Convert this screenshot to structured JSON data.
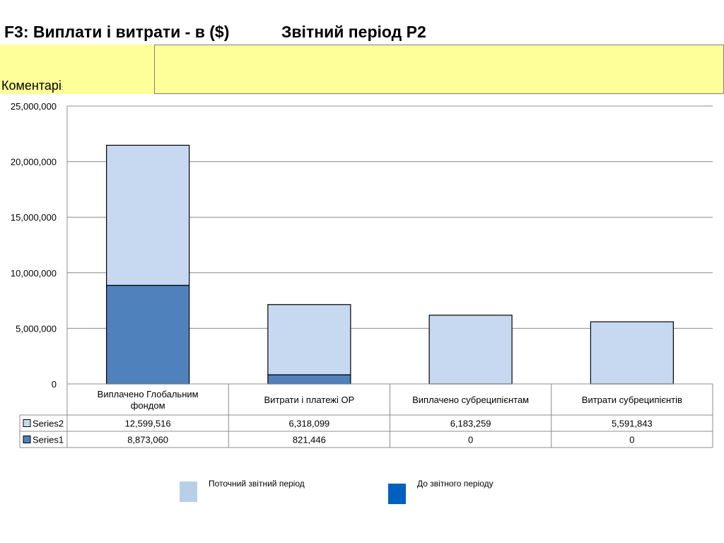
{
  "header": {
    "title_left": "F3: Виплати і витрати - в ($)",
    "title_right": "Звітний період P2"
  },
  "comment": {
    "label": "Коментарі",
    "colon": ":",
    "text": ""
  },
  "chart_data": {
    "type": "bar",
    "stacked": true,
    "categories": [
      "Виплачено Глобальним фондом",
      "Витрати і платежі ОР",
      "Виплачено субреципієнтам",
      "Витрати субреципієнтів"
    ],
    "series": [
      {
        "name": "Series2",
        "values": [
          12599516,
          6318099,
          6183259,
          5591843
        ],
        "color": "#c6d9f1"
      },
      {
        "name": "Series1",
        "values": [
          8873060,
          821446,
          0,
          0
        ],
        "color": "#4f81bd"
      }
    ],
    "ylim": [
      0,
      25000000
    ],
    "yticks": [
      0,
      5000000,
      10000000,
      15000000,
      20000000,
      25000000
    ],
    "ytick_labels": [
      "0",
      "5,000,000",
      "10,000,000",
      "15,000,000",
      "20,000,000",
      "25,000,000"
    ],
    "data_table": {
      "rows": [
        {
          "series": "Series2",
          "cells": [
            "12,599,516",
            "6,318,099",
            "6,183,259",
            "5,591,843"
          ]
        },
        {
          "series": "Series1",
          "cells": [
            "8,873,060",
            "821,446",
            "0",
            "0"
          ]
        }
      ]
    },
    "grid": true
  },
  "legend": {
    "items": [
      {
        "label": "Поточний звітний період",
        "color": "#b8cfe8"
      },
      {
        "label": "До звітного періоду",
        "color": "#0060c0"
      }
    ]
  }
}
